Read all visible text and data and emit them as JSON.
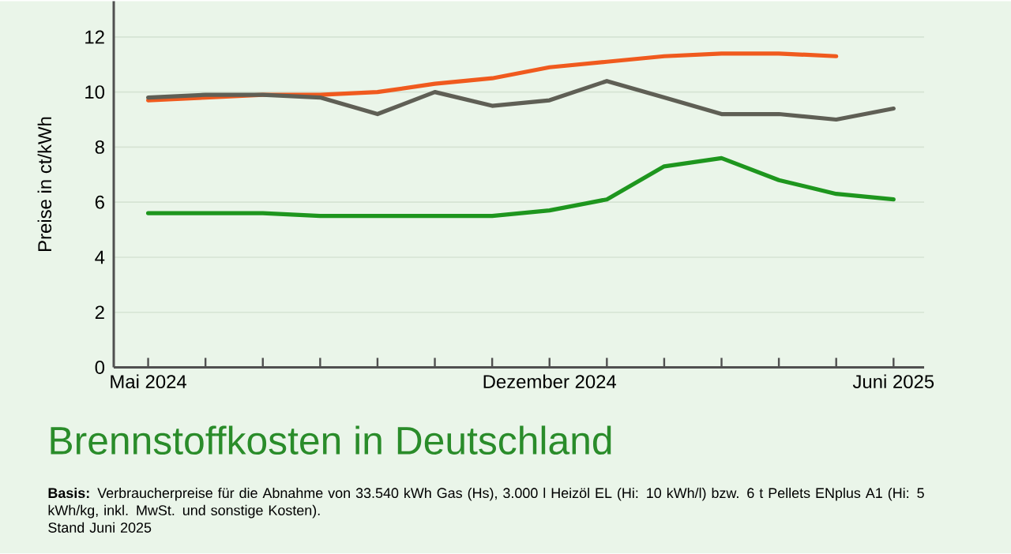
{
  "chart_data": {
    "type": "line",
    "title": "Brennstoffkosten in Deutschland",
    "ylabel": "Preise in ct/kWh",
    "x": [
      "2024-05",
      "2024-06",
      "2024-07",
      "2024-08",
      "2024-09",
      "2024-10",
      "2024-11",
      "2024-12",
      "2025-01",
      "2025-02",
      "2025-03",
      "2025-04",
      "2025-05",
      "2025-06"
    ],
    "series": [
      {
        "color": "#f05a1e",
        "values": [
          9.7,
          9.8,
          9.9,
          9.9,
          10.0,
          10.3,
          10.5,
          10.9,
          11.1,
          11.3,
          11.4,
          11.4,
          11.3,
          null
        ]
      },
      {
        "color": "#5f5f55",
        "values": [
          9.8,
          9.9,
          9.9,
          9.8,
          9.2,
          10.0,
          9.5,
          9.7,
          10.4,
          9.8,
          9.2,
          9.2,
          9.0,
          9.4
        ]
      },
      {
        "color": "#1e961e",
        "values": [
          5.6,
          5.6,
          5.6,
          5.5,
          5.5,
          5.5,
          5.5,
          5.7,
          6.1,
          7.3,
          7.6,
          6.8,
          6.3,
          6.1
        ]
      }
    ],
    "xlim": [
      "2024-04-13",
      "2025-06-17"
    ],
    "xticks": [
      {
        "value": "2024-05",
        "label": "Mai 2024"
      },
      {
        "value": "2024-06",
        "label": null
      },
      {
        "value": "2024-07",
        "label": null
      },
      {
        "value": "2024-08",
        "label": null
      },
      {
        "value": "2024-09",
        "label": null
      },
      {
        "value": "2024-10",
        "label": null
      },
      {
        "value": "2024-11",
        "label": null
      },
      {
        "value": "2024-12",
        "label": "Dezember 2024"
      },
      {
        "value": "2025-01",
        "label": null
      },
      {
        "value": "2025-02",
        "label": null
      },
      {
        "value": "2025-03",
        "label": null
      },
      {
        "value": "2025-04",
        "label": null
      },
      {
        "value": "2025-05",
        "label": null
      },
      {
        "value": "2025-06",
        "label": "Juni 2025"
      }
    ],
    "ylim": [
      0,
      13.3
    ],
    "yticks": [
      0,
      2,
      4,
      6,
      8,
      10,
      12
    ],
    "grid": "y",
    "annotations": [
      "**Basis:** Verbraucherpreise für die Abnahme von 33.540 kWh Gas (Hs), 3.000 l Heizöl EL (Hi: 10 kWh/l) bzw. 6 t Pellets ENplus A1 (Hi: 5 kWh/kg, inkl. MwSt. und sonstige Kosten).",
      "Stand Juni 2025"
    ]
  }
}
